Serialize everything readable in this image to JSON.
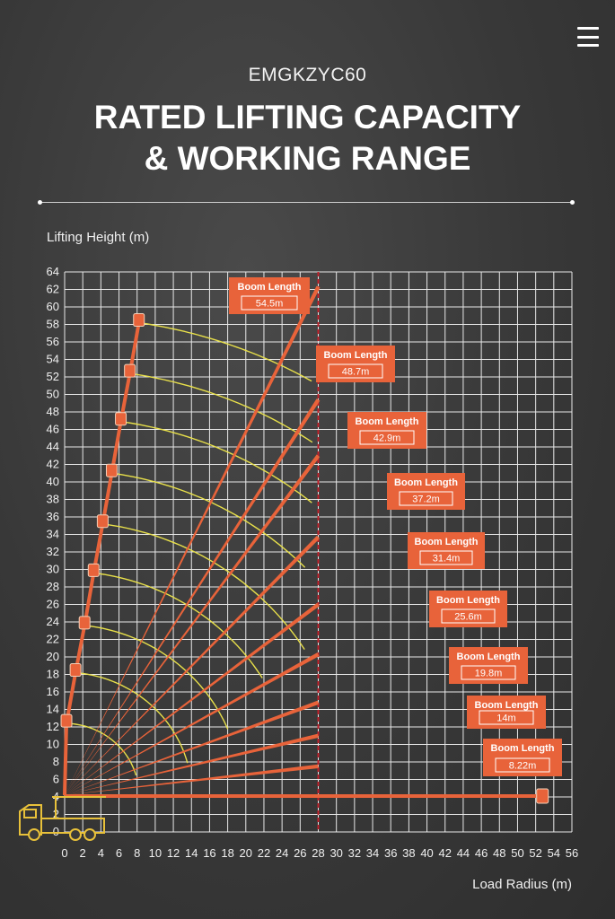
{
  "header": {
    "model": "EMGKZYC60",
    "title_line1": "RATED LIFTING CAPACITY",
    "title_line2": "& WORKING RANGE"
  },
  "icons": {
    "menu": "menu-icon",
    "truck": "truck-crane-icon"
  },
  "colors": {
    "background": "#3a3a3a",
    "grid": "#e8e8e8",
    "boom_line": "#e8633a",
    "working_range_arc": "#e8e04a",
    "limit_line": "#c0202a",
    "label_box": "#e8633a",
    "truck": "#e8c13a"
  },
  "chart_data": {
    "type": "line",
    "title": "",
    "xlabel": "Load Radius (m)",
    "ylabel": "Lifting Height (m)",
    "xlim": [
      0,
      56
    ],
    "ylim": [
      0,
      64
    ],
    "xticks": [
      0,
      2,
      4,
      6,
      8,
      10,
      12,
      14,
      16,
      18,
      20,
      22,
      24,
      26,
      28,
      30,
      32,
      34,
      36,
      38,
      40,
      42,
      44,
      46,
      48,
      50,
      52,
      54,
      56
    ],
    "yticks": [
      0,
      2,
      4,
      6,
      8,
      10,
      12,
      14,
      16,
      18,
      20,
      22,
      24,
      26,
      28,
      30,
      32,
      34,
      36,
      38,
      40,
      42,
      44,
      46,
      48,
      50,
      52,
      54,
      56,
      58,
      60,
      62,
      64
    ],
    "grid": true,
    "boom_pivot": {
      "x": 0,
      "y": 4.2
    },
    "max_working_radius": 28,
    "boom_label_title": "Boom Length",
    "booms": [
      {
        "length": "54.5m",
        "tip": {
          "x": 8.2,
          "y": 58.2
        },
        "line_end": {
          "x": 28,
          "y": 62.3
        },
        "arc_end": {
          "x": 28,
          "y": 52.8
        }
      },
      {
        "length": "48.7m",
        "tip": {
          "x": 7.2,
          "y": 52.4
        },
        "line_end": {
          "x": 28,
          "y": 49.4
        },
        "arc_end": {
          "x": 28,
          "y": 45.5
        }
      },
      {
        "length": "42.9m",
        "tip": {
          "x": 6.2,
          "y": 46.9
        },
        "line_end": {
          "x": 28,
          "y": 43.0
        },
        "arc_end": {
          "x": 28,
          "y": 38.5
        }
      },
      {
        "length": "37.2m",
        "tip": {
          "x": 5.2,
          "y": 41.0
        },
        "line_end": {
          "x": 28,
          "y": 33.7
        },
        "arc_end": {
          "x": 27.3,
          "y": 31.0
        }
      },
      {
        "length": "31.4m",
        "tip": {
          "x": 4.2,
          "y": 35.2
        },
        "line_end": {
          "x": 28,
          "y": 26.0
        },
        "arc_end": {
          "x": 27.5,
          "y": 21.5
        }
      },
      {
        "length": "25.6m",
        "tip": {
          "x": 3.2,
          "y": 29.6
        },
        "line_end": {
          "x": 28,
          "y": 20.3
        },
        "arc_end": {
          "x": 22.5,
          "y": 18.0
        }
      },
      {
        "length": "19.8m",
        "tip": {
          "x": 2.2,
          "y": 23.6
        },
        "line_end": {
          "x": 28,
          "y": 14.8
        },
        "arc_end": {
          "x": 18.6,
          "y": 12.0
        }
      },
      {
        "length": "14m",
        "tip": {
          "x": 1.2,
          "y": 18.2
        },
        "line_end": {
          "x": 28,
          "y": 11.0
        },
        "arc_end": {
          "x": 14.0,
          "y": 8.0
        }
      },
      {
        "length": "8.22m",
        "tip": {
          "x": 0.2,
          "y": 12.4
        },
        "line_end": {
          "x": 28,
          "y": 7.5
        },
        "arc_end": {
          "x": 8.0,
          "y": 6.5
        }
      }
    ],
    "horizontal_boom": {
      "x_start": 0,
      "x_end": 52.8,
      "y": 4.1
    }
  }
}
